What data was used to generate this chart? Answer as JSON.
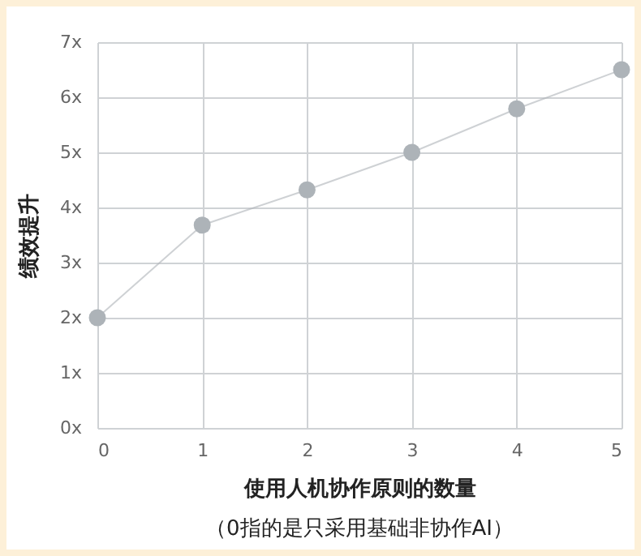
{
  "chart_data": {
    "type": "line",
    "xlabel": "使用人机协作原则的数量",
    "ylabel": "绩效提升",
    "annotations": [
      "（0指的是只采用基础非协作AI）"
    ],
    "x": [
      0,
      1,
      2,
      3,
      4,
      5
    ],
    "series": [
      {
        "color": "#adb3b8",
        "values": [
          2.0,
          3.68,
          4.32,
          5.0,
          5.79,
          6.5
        ]
      }
    ],
    "xlim": [
      0,
      5
    ],
    "xticks": [
      0,
      1,
      2,
      3,
      4,
      5
    ],
    "ylim": [
      0,
      7
    ],
    "yticks": [
      {
        "value": 0,
        "label": "0x"
      },
      {
        "value": 1,
        "label": "1x"
      },
      {
        "value": 2,
        "label": "2x"
      },
      {
        "value": 3,
        "label": "3x"
      },
      {
        "value": 4,
        "label": "4x"
      },
      {
        "value": 5,
        "label": "5x"
      },
      {
        "value": 6,
        "label": "6x"
      },
      {
        "value": 7,
        "label": "7x"
      }
    ],
    "grid": true,
    "marker": "circle",
    "line_style": "solid"
  }
}
